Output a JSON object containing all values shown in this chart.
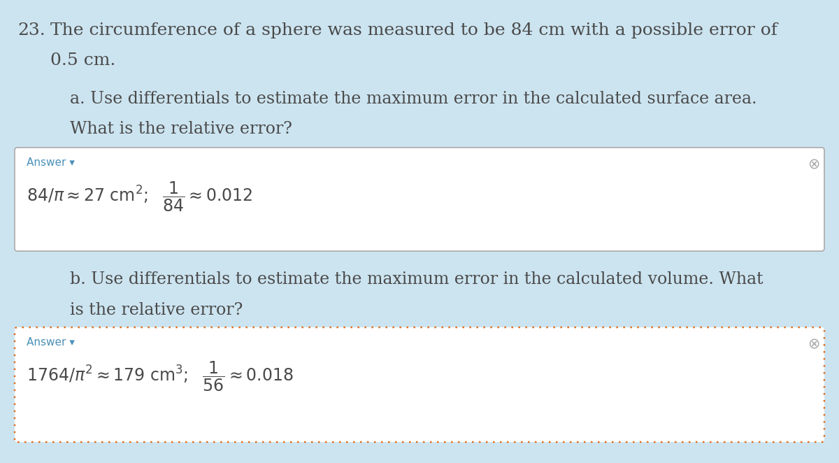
{
  "background_color": "#cce4f0",
  "text_color": "#4a4a4a",
  "problem_number": "23.",
  "problem_text_line1": "The circumference of a sphere was measured to be 84 cm with a possible error of",
  "problem_text_line2": "0.5 cm.",
  "part_a_text_line1": "a. Use differentials to estimate the maximum error in the calculated surface area.",
  "part_a_text_line2": "What is the relative error?",
  "answer_label_color": "#4a90b8",
  "answer_a_label": "Answer ▾",
  "part_b_text_line1": "b. Use differentials to estimate the maximum error in the calculated volume. What",
  "part_b_text_line2": "is the relative error?",
  "answer_b_label": "Answer ▾",
  "answer_box_a_border": "#aaaaaa",
  "answer_box_b_border": "#e07020",
  "close_icon_color": "#aaaaaa",
  "font_size_problem": 18,
  "font_size_part": 17,
  "font_size_answer_label": 11,
  "font_size_answer_math": 17
}
